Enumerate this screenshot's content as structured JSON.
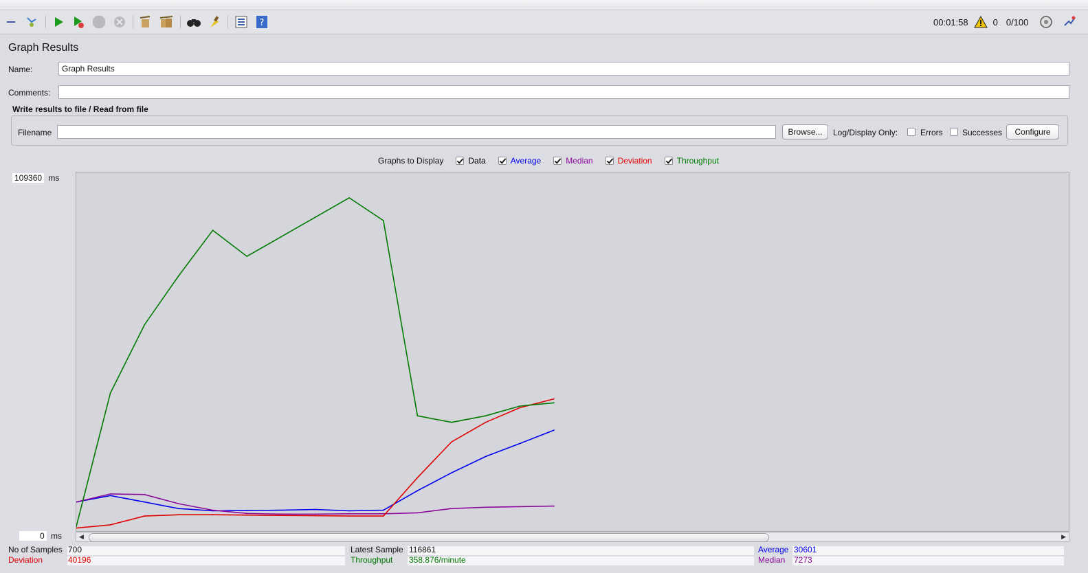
{
  "toolbar": {
    "icons": [
      "collapse-icon",
      "toggle-icon",
      "start-icon",
      "start-no-pause-icon",
      "stop-icon",
      "shutdown-icon",
      "clear-icon",
      "clear-all-icon",
      "search-icon",
      "reset-search-icon",
      "function-helper-icon",
      "help-icon"
    ],
    "elapsed_time": "00:01:58",
    "warning_count": "0",
    "threads": "0/100"
  },
  "panel": {
    "title": "Graph Results",
    "name_label": "Name:",
    "name_value": "Graph Results",
    "comments_label": "Comments:",
    "comments_value": ""
  },
  "file_group": {
    "title": "Write results to file / Read from file",
    "filename_label": "Filename",
    "filename_value": "",
    "browse_label": "Browse...",
    "log_display_label": "Log/Display Only:",
    "errors_label": "Errors",
    "successes_label": "Successes",
    "configure_label": "Configure"
  },
  "graphs_to_display": {
    "label": "Graphs to Display",
    "options": [
      {
        "label": "Data",
        "checked": true,
        "color": "#000000"
      },
      {
        "label": "Average",
        "checked": true,
        "color": "#0000ee"
      },
      {
        "label": "Median",
        "checked": true,
        "color": "#8a0a9a"
      },
      {
        "label": "Deviation",
        "checked": true,
        "color": "#e00000"
      },
      {
        "label": "Throughput",
        "checked": true,
        "color": "#007a00"
      }
    ]
  },
  "chart_data": {
    "type": "line",
    "y_max_label": "109360",
    "y_min_label": "0",
    "y_unit": "ms",
    "ylim": [
      0,
      109360
    ],
    "x": [
      0,
      50,
      100,
      150,
      200,
      250,
      300,
      350,
      400,
      450,
      500,
      550,
      600,
      650,
      700
    ],
    "series": [
      {
        "name": "Average",
        "color": "#0000ee",
        "values": [
          8500,
          10500,
          8500,
          6500,
          5800,
          5900,
          6000,
          6200,
          5800,
          6000,
          12000,
          17500,
          22500,
          26500,
          30601
        ]
      },
      {
        "name": "Median",
        "color": "#8a0a9a",
        "values": [
          8500,
          11000,
          10800,
          8000,
          6000,
          5000,
          4800,
          4800,
          4900,
          4900,
          5200,
          6500,
          6900,
          7100,
          7273
        ]
      },
      {
        "name": "Deviation",
        "color": "#e00000",
        "values": [
          500,
          1500,
          4200,
          4600,
          4600,
          4500,
          4400,
          4300,
          4200,
          4200,
          16000,
          27000,
          33000,
          37500,
          40196
        ]
      },
      {
        "name": "Throughput",
        "color": "#007a00",
        "values": [
          1000,
          42000,
          63000,
          78000,
          92000,
          84000,
          90000,
          96000,
          102000,
          95000,
          35000,
          33000,
          35000,
          38000,
          39000
        ]
      }
    ]
  },
  "stats": {
    "samples_label": "No of Samples",
    "samples_value": "700",
    "latest_label": "Latest Sample",
    "latest_value": "116861",
    "average_label": "Average",
    "average_value": "30601",
    "deviation_label": "Deviation",
    "deviation_value": "40196",
    "throughput_label": "Throughput",
    "throughput_value": "358.876/minute",
    "median_label": "Median",
    "median_value": "7273"
  }
}
